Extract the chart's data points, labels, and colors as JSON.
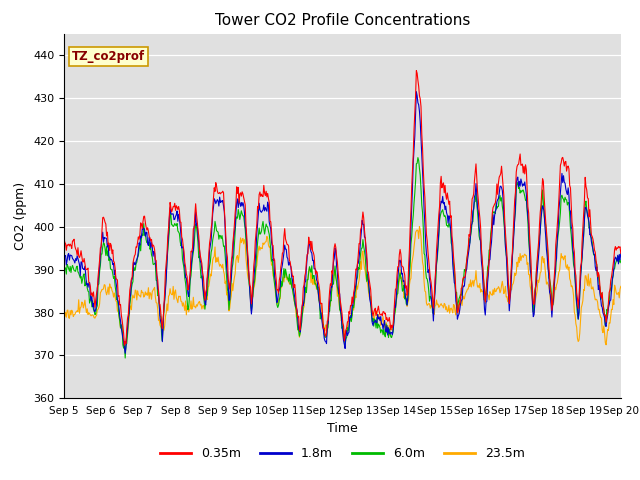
{
  "title": "Tower CO2 Profile Concentrations",
  "xlabel": "Time",
  "ylabel": "CO2 (ppm)",
  "ylim": [
    360,
    445
  ],
  "yticks": [
    360,
    370,
    380,
    390,
    400,
    410,
    420,
    430,
    440
  ],
  "xtick_labels": [
    "Sep 5",
    "Sep 6",
    "Sep 7",
    "Sep 8",
    "Sep 9",
    "Sep 10",
    "Sep 11",
    "Sep 12",
    "Sep 13",
    "Sep 14",
    "Sep 15",
    "Sep 16",
    "Sep 17",
    "Sep 18",
    "Sep 19",
    "Sep 20"
  ],
  "series_colors": [
    "#ff0000",
    "#0000cc",
    "#00bb00",
    "#ffaa00"
  ],
  "series_labels": [
    "0.35m",
    "1.8m",
    "6.0m",
    "23.5m"
  ],
  "line_width": 0.8,
  "bg_color": "#e0e0e0",
  "legend_box_text": "TZ_co2prof",
  "legend_box_color": "#ffffcc",
  "legend_box_edge": "#cc9900",
  "legend_box_text_color": "#880000",
  "figsize": [
    6.4,
    4.8
  ],
  "dpi": 100
}
